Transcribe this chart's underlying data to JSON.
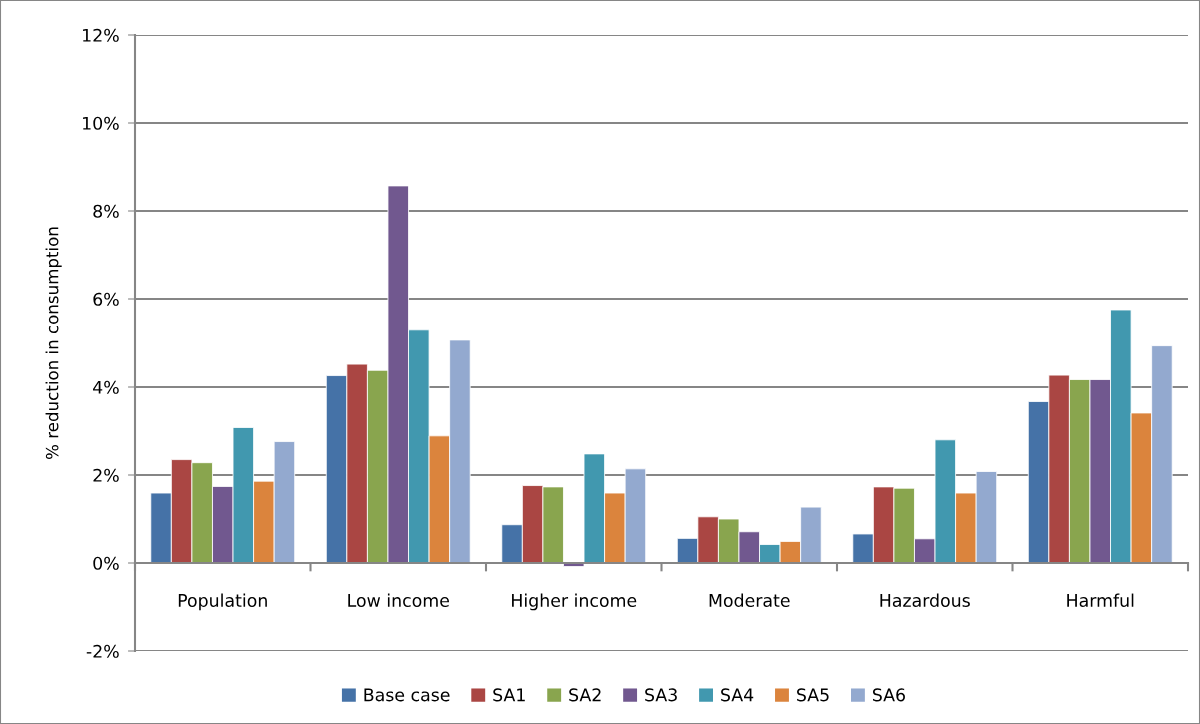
{
  "chart_data": {
    "type": "bar",
    "ylabel": "% reduction in consumption",
    "categories": [
      "Population",
      "Low income",
      "Higher income",
      "Moderate",
      "Hazardous",
      "Harmful"
    ],
    "series": [
      {
        "name": "Base case",
        "color": "#4572a7",
        "values": [
          1.59,
          4.26,
          0.87,
          0.56,
          0.66,
          3.67
        ]
      },
      {
        "name": "SA1",
        "color": "#aa4643",
        "values": [
          2.35,
          4.52,
          1.76,
          1.05,
          1.73,
          4.27
        ]
      },
      {
        "name": "SA2",
        "color": "#89a54e",
        "values": [
          2.28,
          4.38,
          1.73,
          1.0,
          1.7,
          4.17
        ]
      },
      {
        "name": "SA3",
        "color": "#71588f",
        "values": [
          1.74,
          8.57,
          -0.08,
          0.71,
          0.55,
          4.17
        ]
      },
      {
        "name": "SA4",
        "color": "#4198af",
        "values": [
          3.08,
          5.3,
          2.48,
          0.42,
          2.8,
          5.75
        ]
      },
      {
        "name": "SA5",
        "color": "#db843d",
        "values": [
          1.86,
          2.89,
          1.59,
          0.49,
          1.59,
          3.41
        ]
      },
      {
        "name": "SA6",
        "color": "#93a9cf",
        "values": [
          2.76,
          5.07,
          2.14,
          1.27,
          2.08,
          4.94
        ]
      }
    ],
    "ylim": [
      -2,
      12
    ],
    "yticks": [
      {
        "value": -2,
        "label": "-2%"
      },
      {
        "value": 0,
        "label": "0%"
      },
      {
        "value": 2,
        "label": "2%"
      },
      {
        "value": 4,
        "label": "4%"
      },
      {
        "value": 6,
        "label": "6%"
      },
      {
        "value": 8,
        "label": "8%"
      },
      {
        "value": 10,
        "label": "10%"
      },
      {
        "value": 12,
        "label": "12%"
      }
    ],
    "grid": "y",
    "legend": "bottom"
  }
}
